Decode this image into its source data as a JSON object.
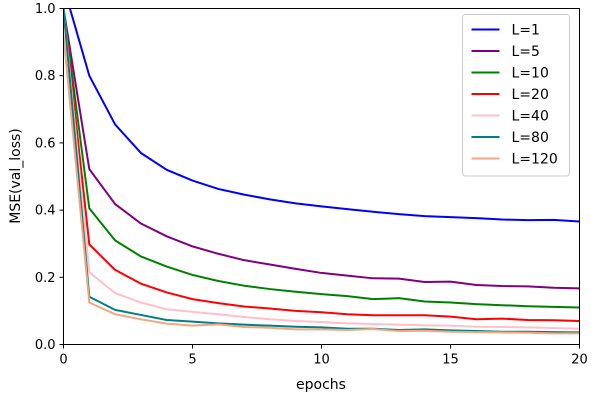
{
  "chart_data": {
    "type": "line",
    "title": "",
    "xlabel": "epochs",
    "ylabel": "MSE(val_loss)",
    "xlim": [
      0,
      20
    ],
    "ylim": [
      0.0,
      1.0
    ],
    "xticks": [
      "0",
      "5",
      "10",
      "15",
      "20"
    ],
    "yticks": [
      "0.0",
      "0.2",
      "0.4",
      "0.6",
      "0.8",
      "1.0"
    ],
    "grid": false,
    "legend_position": "top-right",
    "x": [
      0,
      1,
      2,
      3,
      4,
      5,
      6,
      7,
      8,
      9,
      10,
      11,
      12,
      13,
      14,
      15,
      16,
      17,
      18,
      19,
      20
    ],
    "series": [
      {
        "name": "L=1",
        "color": "#0000ff",
        "x0": 0.25,
        "values": [
          1.0,
          0.8,
          0.655,
          0.57,
          0.52,
          0.488,
          0.463,
          0.446,
          0.432,
          0.42,
          0.411,
          0.403,
          0.395,
          0.388,
          0.382,
          0.379,
          0.376,
          0.372,
          0.37,
          0.371,
          0.366
        ]
      },
      {
        "name": "L=5",
        "color": "#800080",
        "x0": 0,
        "values": [
          1.0,
          0.522,
          0.418,
          0.36,
          0.322,
          0.292,
          0.27,
          0.251,
          0.238,
          0.225,
          0.213,
          0.205,
          0.197,
          0.196,
          0.186,
          0.187,
          0.177,
          0.174,
          0.173,
          0.169,
          0.167
        ]
      },
      {
        "name": "L=10",
        "color": "#008000",
        "x0": 0,
        "values": [
          1.0,
          0.405,
          0.31,
          0.262,
          0.232,
          0.207,
          0.189,
          0.175,
          0.165,
          0.157,
          0.15,
          0.144,
          0.135,
          0.138,
          0.128,
          0.125,
          0.12,
          0.117,
          0.114,
          0.112,
          0.11
        ]
      },
      {
        "name": "L=20",
        "color": "#ff0000",
        "x0": 0,
        "values": [
          1.0,
          0.298,
          0.222,
          0.181,
          0.155,
          0.135,
          0.123,
          0.113,
          0.107,
          0.1,
          0.096,
          0.09,
          0.087,
          0.087,
          0.087,
          0.083,
          0.075,
          0.077,
          0.073,
          0.072,
          0.07
        ]
      },
      {
        "name": "L=40",
        "color": "#ffc0cb",
        "x0": 0,
        "values": [
          1.0,
          0.215,
          0.153,
          0.125,
          0.105,
          0.097,
          0.09,
          0.082,
          0.075,
          0.07,
          0.067,
          0.063,
          0.061,
          0.059,
          0.057,
          0.056,
          0.053,
          0.052,
          0.051,
          0.049,
          0.047
        ]
      },
      {
        "name": "L=80",
        "color": "#008080",
        "x0": 0,
        "values": [
          1.0,
          0.142,
          0.103,
          0.088,
          0.073,
          0.068,
          0.063,
          0.059,
          0.056,
          0.053,
          0.051,
          0.047,
          0.047,
          0.043,
          0.045,
          0.042,
          0.04,
          0.038,
          0.038,
          0.037,
          0.036
        ]
      },
      {
        "name": "L=120",
        "color": "#f4a582",
        "x0": 0,
        "values": [
          0.92,
          0.125,
          0.09,
          0.075,
          0.062,
          0.056,
          0.06,
          0.052,
          0.05,
          0.045,
          0.045,
          0.043,
          0.046,
          0.04,
          0.041,
          0.038,
          0.037,
          0.036,
          0.035,
          0.033,
          0.033
        ]
      }
    ]
  }
}
